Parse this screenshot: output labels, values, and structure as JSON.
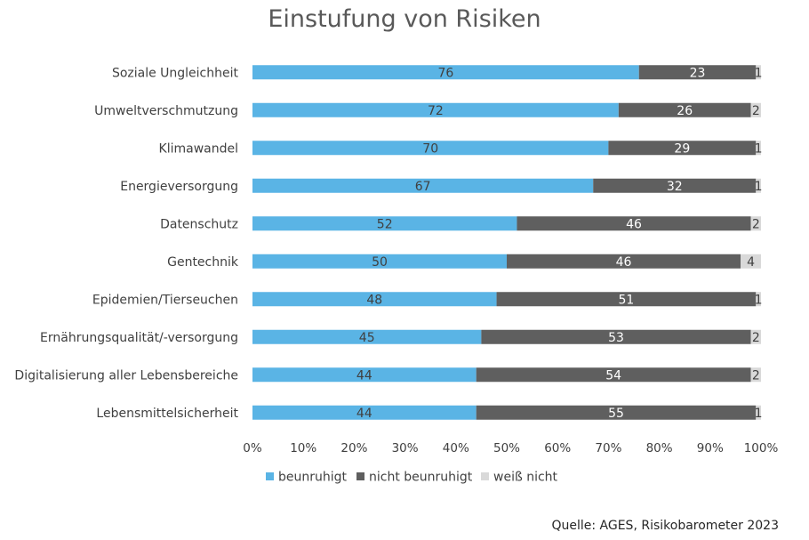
{
  "chart_data": {
    "type": "bar",
    "orientation": "horizontal",
    "stacked": "percent",
    "title": "Einstufung von Risiken",
    "categories": [
      "Soziale Ungleichheit",
      "Umweltverschmutzung",
      "Klimawandel",
      "Energieversorgung",
      "Datenschutz",
      "Gentechnik",
      "Epidemien/Tierseuchen",
      "Ernährungsqualität/-versorgung",
      "Digitalisierung aller Lebensbereiche",
      "Lebensmittelsicherheit"
    ],
    "series": [
      {
        "name": "beunruhigt",
        "color": "#5ab4e5",
        "label_color": "#404040",
        "values": [
          76,
          72,
          70,
          67,
          52,
          50,
          48,
          45,
          44,
          44
        ]
      },
      {
        "name": "nicht beunruhigt",
        "color": "#5f5f5f",
        "label_color": "#ffffff",
        "values": [
          23,
          26,
          29,
          32,
          46,
          46,
          51,
          53,
          54,
          55
        ]
      },
      {
        "name": "weiß nicht",
        "color": "#d9d9d9",
        "label_color": "#404040",
        "values": [
          1,
          2,
          1,
          1,
          2,
          4,
          1,
          2,
          2,
          1
        ]
      }
    ],
    "x_ticks": [
      "0%",
      "10%",
      "20%",
      "30%",
      "40%",
      "50%",
      "60%",
      "70%",
      "80%",
      "90%",
      "100%"
    ],
    "xlim": [
      0,
      100
    ],
    "grid": false,
    "legend_position": "bottom"
  },
  "source": "Quelle: AGES, Risikobarometer 2023"
}
